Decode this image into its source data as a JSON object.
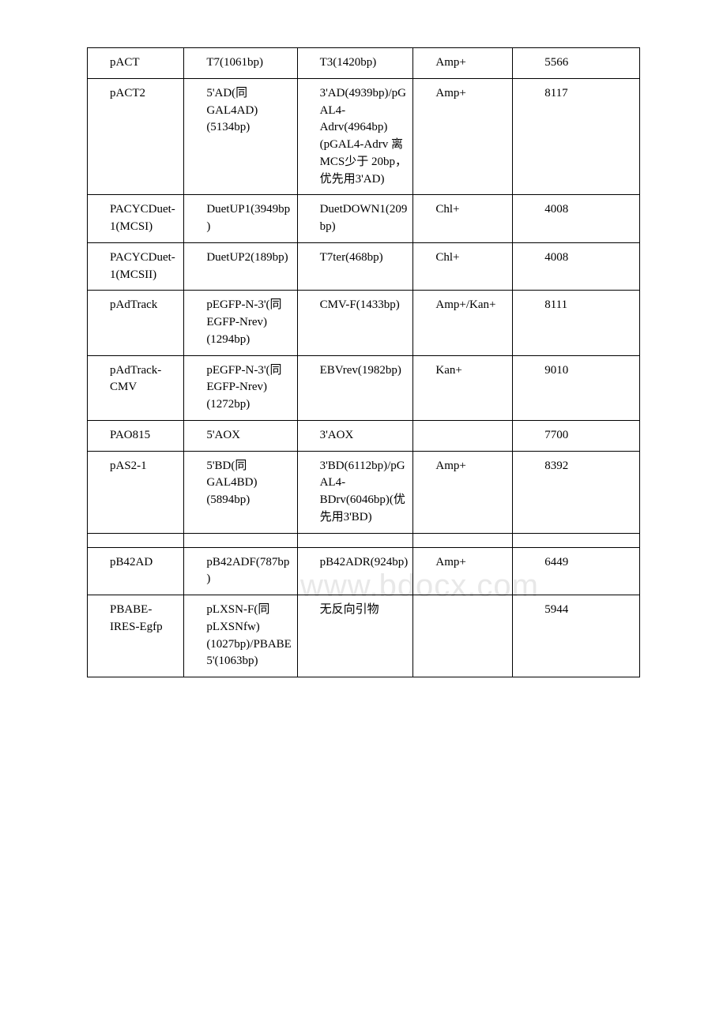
{
  "watermark": "www.bdocx.com",
  "table": {
    "rows": [
      {
        "c1": "pACT",
        "c2": "T7(1061bp)",
        "c3": "T3(1420bp)",
        "c4": "Amp+",
        "c5": "5566"
      },
      {
        "c1": "pACT2",
        "c2": "5'AD(同GAL4AD)(5134bp)",
        "c3": "3'AD(4939bp)/pGAL4-Adrv(4964bp)(pGAL4-Adrv 离 MCS少于 20bp，优先用3'AD)",
        "c4": "Amp+",
        "c5": "8117"
      },
      {
        "c1": "PACYCDuet-1(MCSI)",
        "c2": "DuetUP1(3949bp)",
        "c3": "DuetDOWN1(209bp)",
        "c4": "Chl+",
        "c5": "4008"
      },
      {
        "c1": "PACYCDuet-1(MCSII)",
        "c2": "DuetUP2(189bp)",
        "c3": "T7ter(468bp)",
        "c4": "Chl+",
        "c5": "4008"
      },
      {
        "c1": "pAdTrack",
        "c2": "pEGFP-N-3'(同EGFP-Nrev)(1294bp)",
        "c3": "CMV-F(1433bp)",
        "c4": "Amp+/Kan+",
        "c5": "8111"
      },
      {
        "c1": "pAdTrack-CMV",
        "c2": "pEGFP-N-3'(同EGFP-Nrev)(1272bp)",
        "c3": "EBVrev(1982bp)",
        "c4": "Kan+",
        "c5": "9010"
      },
      {
        "c1": "PAO815",
        "c2": "5'AOX",
        "c3": "3'AOX",
        "c4": "",
        "c5": "7700"
      },
      {
        "c1": "pAS2-1",
        "c2": "5'BD(同GAL4BD)(5894bp)",
        "c3": "3'BD(6112bp)/pGAL4-BDrv(6046bp)(优先用3'BD)",
        "c4": "Amp+",
        "c5": "8392"
      },
      {
        "empty": true
      },
      {
        "c1": "pB42AD",
        "c2": "pB42ADF(787bp)",
        "c3": "pB42ADR(924bp)",
        "c4": "Amp+",
        "c5": "6449"
      },
      {
        "c1": "PBABE-IRES-Egfp",
        "c2": "pLXSN-F(同pLXSNfw)(1027bp)/PBABE5'(1063bp)",
        "c3": "无反向引物",
        "c4": "",
        "c5": "5944"
      }
    ]
  },
  "colors": {
    "text": "#000000",
    "border": "#000000",
    "background": "#ffffff",
    "watermark": "#e8e8e8"
  }
}
